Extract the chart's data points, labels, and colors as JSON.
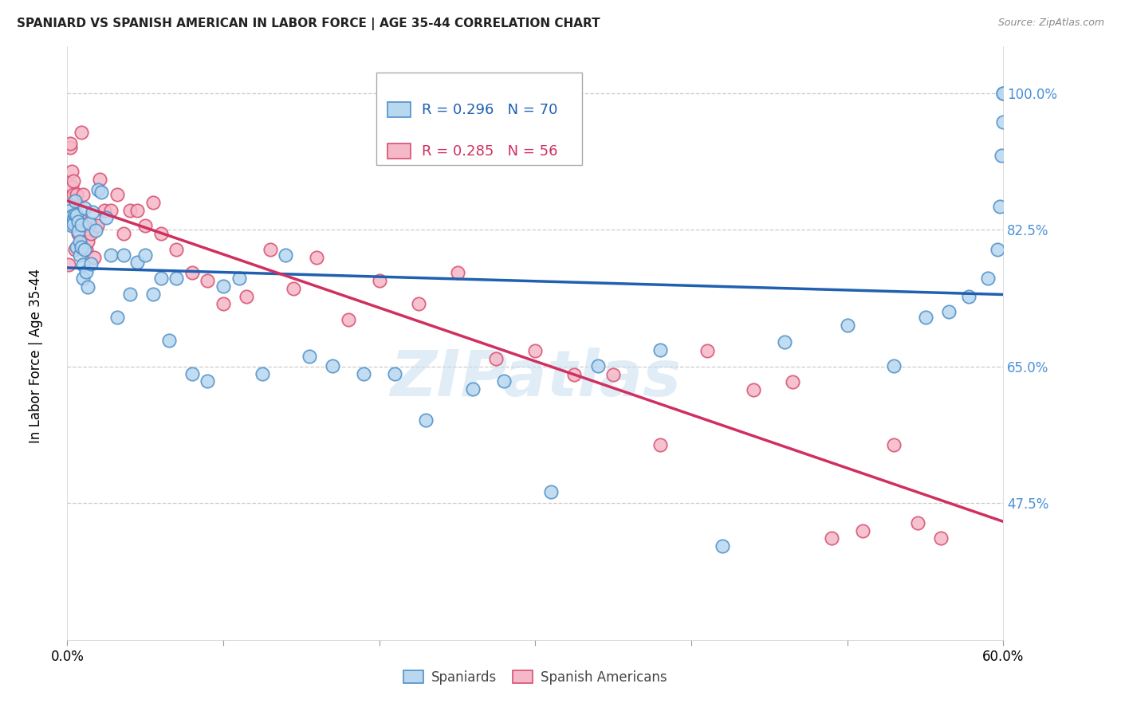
{
  "title": "SPANIARD VS SPANISH AMERICAN IN LABOR FORCE | AGE 35-44 CORRELATION CHART",
  "source": "Source: ZipAtlas.com",
  "ylabel": "In Labor Force | Age 35-44",
  "xlim": [
    0.0,
    0.6
  ],
  "ylim": [
    0.3,
    1.06
  ],
  "yticks": [
    0.475,
    0.65,
    0.825,
    1.0
  ],
  "ytick_labels": [
    "47.5%",
    "65.0%",
    "82.5%",
    "100.0%"
  ],
  "xticks": [
    0.0,
    0.1,
    0.2,
    0.3,
    0.4,
    0.5,
    0.6
  ],
  "xtick_labels": [
    "0.0%",
    "",
    "",
    "",
    "",
    "",
    "60.0%"
  ],
  "blue_R": 0.296,
  "blue_N": 70,
  "pink_R": 0.285,
  "pink_N": 56,
  "blue_face_color": "#B8D8F0",
  "pink_face_color": "#F5B8C8",
  "blue_edge_color": "#5090C8",
  "pink_edge_color": "#D85070",
  "blue_line_color": "#2060B0",
  "pink_line_color": "#D03060",
  "legend_blue_label": "Spaniards",
  "legend_pink_label": "Spanish Americans",
  "watermark_text": "ZIPatlas",
  "blue_scatter_x": [
    0.001,
    0.002,
    0.002,
    0.003,
    0.003,
    0.004,
    0.004,
    0.005,
    0.005,
    0.006,
    0.006,
    0.007,
    0.007,
    0.008,
    0.008,
    0.009,
    0.009,
    0.01,
    0.01,
    0.011,
    0.011,
    0.012,
    0.013,
    0.014,
    0.015,
    0.016,
    0.018,
    0.02,
    0.022,
    0.025,
    0.028,
    0.032,
    0.036,
    0.04,
    0.045,
    0.05,
    0.055,
    0.06,
    0.065,
    0.07,
    0.08,
    0.09,
    0.1,
    0.11,
    0.125,
    0.14,
    0.155,
    0.17,
    0.19,
    0.21,
    0.23,
    0.26,
    0.28,
    0.31,
    0.34,
    0.38,
    0.42,
    0.46,
    0.5,
    0.53,
    0.55,
    0.565,
    0.578,
    0.59,
    0.596,
    0.598,
    0.599,
    0.6,
    0.6,
    0.6
  ],
  "blue_scatter_y": [
    0.84,
    0.85,
    0.835,
    0.843,
    0.83,
    0.838,
    0.832,
    0.862,
    0.845,
    0.844,
    0.803,
    0.836,
    0.823,
    0.81,
    0.793,
    0.831,
    0.803,
    0.763,
    0.78,
    0.853,
    0.8,
    0.771,
    0.752,
    0.833,
    0.781,
    0.848,
    0.824,
    0.876,
    0.873,
    0.841,
    0.793,
    0.713,
    0.793,
    0.743,
    0.783,
    0.793,
    0.743,
    0.763,
    0.683,
    0.763,
    0.641,
    0.631,
    0.753,
    0.763,
    0.641,
    0.793,
    0.663,
    0.651,
    0.641,
    0.641,
    0.581,
    0.621,
    0.631,
    0.49,
    0.651,
    0.671,
    0.42,
    0.681,
    0.703,
    0.651,
    0.713,
    0.72,
    0.74,
    0.763,
    0.8,
    0.855,
    0.92,
    0.963,
    1.0,
    1.0
  ],
  "pink_scatter_x": [
    0.001,
    0.002,
    0.002,
    0.003,
    0.003,
    0.004,
    0.004,
    0.005,
    0.005,
    0.006,
    0.006,
    0.007,
    0.008,
    0.009,
    0.01,
    0.011,
    0.012,
    0.013,
    0.015,
    0.017,
    0.019,
    0.021,
    0.024,
    0.028,
    0.032,
    0.036,
    0.04,
    0.045,
    0.05,
    0.055,
    0.06,
    0.07,
    0.08,
    0.09,
    0.1,
    0.115,
    0.13,
    0.145,
    0.16,
    0.18,
    0.2,
    0.225,
    0.25,
    0.275,
    0.3,
    0.325,
    0.35,
    0.38,
    0.41,
    0.44,
    0.465,
    0.49,
    0.51,
    0.53,
    0.545,
    0.56
  ],
  "pink_scatter_y": [
    0.78,
    0.93,
    0.935,
    0.88,
    0.9,
    0.888,
    0.87,
    0.8,
    0.83,
    0.86,
    0.87,
    0.82,
    0.84,
    0.95,
    0.87,
    0.83,
    0.8,
    0.81,
    0.82,
    0.79,
    0.83,
    0.89,
    0.85,
    0.85,
    0.87,
    0.82,
    0.85,
    0.85,
    0.83,
    0.86,
    0.82,
    0.8,
    0.77,
    0.76,
    0.73,
    0.74,
    0.8,
    0.75,
    0.79,
    0.71,
    0.76,
    0.73,
    0.77,
    0.66,
    0.67,
    0.64,
    0.64,
    0.55,
    0.67,
    0.62,
    0.63,
    0.43,
    0.44,
    0.55,
    0.45,
    0.43
  ]
}
